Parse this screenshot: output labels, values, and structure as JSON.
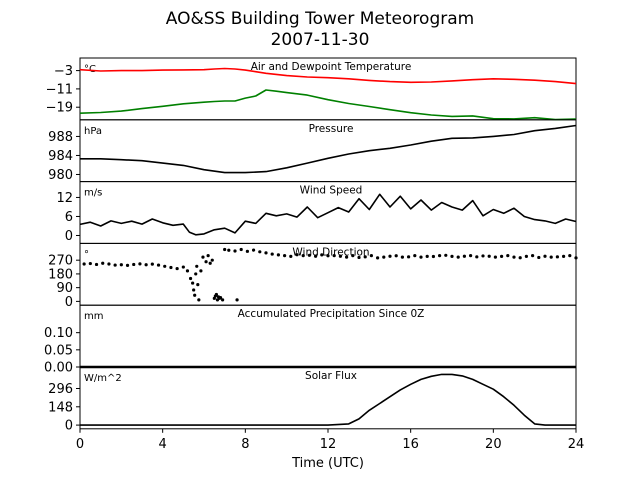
{
  "chart_data": {
    "type": "line",
    "title": "AO&SS Building Tower Meteorogram",
    "subtitle": "2007-11-30",
    "xlabel": "Time (UTC)",
    "xlim": [
      0,
      24
    ],
    "x_ticks": [
      0,
      4,
      8,
      12,
      16,
      20,
      24
    ],
    "x_tick_labels": [
      "0",
      "4",
      "8",
      "12",
      "16",
      "20",
      "24"
    ],
    "colors": {
      "temperature": "#ff0000",
      "dewpoint": "#008000",
      "default": "#000000"
    },
    "panels": [
      {
        "id": "temperature",
        "type": "line",
        "title": "Air and Dewpoint Temperature",
        "unit_label": "°C",
        "ylim": [
          -24.5,
          2.5
        ],
        "y_ticks": [
          -3,
          -11,
          -19
        ],
        "y_tick_labels": [
          "−3",
          "−11",
          "−19"
        ],
        "series": [
          {
            "key": "temperature",
            "color": "#ff0000",
            "x": [
              0,
              1,
              2,
              3,
              4,
              5,
              6,
              6.5,
              7,
              7.5,
              8,
              8.5,
              9,
              10,
              11,
              12,
              13,
              14,
              15,
              16,
              17,
              18,
              19,
              20,
              21,
              22,
              23,
              24
            ],
            "y": [
              -2.6,
              -3.2,
              -3.0,
              -3.0,
              -2.8,
              -2.7,
              -2.6,
              -2.3,
              -2.1,
              -2.3,
              -2.8,
              -3.5,
              -4.2,
              -5.2,
              -5.8,
              -6.1,
              -6.6,
              -7.3,
              -7.8,
              -8.1,
              -8.0,
              -7.5,
              -7.0,
              -6.6,
              -6.8,
              -7.2,
              -7.8,
              -8.7
            ]
          },
          {
            "key": "dewpoint",
            "color": "#008000",
            "x": [
              0,
              1,
              2,
              3,
              4,
              5,
              6,
              6.5,
              7,
              7.5,
              8,
              8.5,
              9,
              9.5,
              10,
              11,
              12,
              13,
              14,
              15,
              16,
              17,
              18,
              19,
              20,
              21,
              22,
              23,
              24
            ],
            "y": [
              -21.6,
              -21.3,
              -20.7,
              -19.6,
              -18.6,
              -17.5,
              -16.8,
              -16.5,
              -16.3,
              -16.3,
              -15.0,
              -14.1,
              -11.5,
              -12.0,
              -12.6,
              -13.7,
              -15.7,
              -17.4,
              -18.7,
              -20.1,
              -21.4,
              -22.4,
              -23.0,
              -22.8,
              -24.0,
              -24.1,
              -23.6,
              -24.4,
              -24.2
            ]
          }
        ]
      },
      {
        "id": "pressure",
        "type": "line",
        "title": "Pressure",
        "unit_label": "hPa",
        "ylim": [
          978.5,
          991.5
        ],
        "y_ticks": [
          980,
          984,
          988
        ],
        "y_tick_labels": [
          "980",
          "984",
          "988"
        ],
        "series": [
          {
            "key": "default",
            "color": "#000000",
            "x": [
              0,
              1,
              2,
              3,
              4,
              5,
              6,
              7,
              8,
              9,
              10,
              11,
              12,
              13,
              14,
              15,
              16,
              17,
              18,
              19,
              20,
              21,
              22,
              23,
              24
            ],
            "y": [
              983.3,
              983.3,
              983.1,
              982.9,
              982.4,
              981.9,
              981.0,
              980.4,
              980.4,
              980.6,
              981.4,
              982.4,
              983.4,
              984.3,
              985.0,
              985.5,
              986.2,
              987.0,
              987.6,
              987.7,
              988.0,
              988.4,
              989.2,
              989.7,
              990.3
            ]
          }
        ]
      },
      {
        "id": "wind-speed",
        "type": "line",
        "title": "Wind Speed",
        "unit_label": "m/s",
        "ylim": [
          -2.5,
          17
        ],
        "y_ticks": [
          0,
          6,
          12
        ],
        "y_tick_labels": [
          "0",
          "6",
          "12"
        ],
        "series": [
          {
            "key": "default",
            "color": "#000000",
            "x": [
              0,
              0.5,
              1,
              1.5,
              2,
              2.5,
              3,
              3.5,
              4,
              4.5,
              5,
              5.3,
              5.6,
              6,
              6.5,
              7,
              7.5,
              8,
              8.5,
              9,
              9.5,
              10,
              10.5,
              11,
              11.5,
              12,
              12.5,
              13,
              13.5,
              14,
              14.5,
              15,
              15.5,
              16,
              16.5,
              17,
              17.5,
              18,
              18.5,
              19,
              19.5,
              20,
              20.5,
              21,
              21.5,
              22,
              22.5,
              23,
              23.5,
              24
            ],
            "y": [
              3.5,
              4.2,
              3.0,
              4.6,
              3.8,
              4.5,
              3.6,
              5.2,
              4.0,
              3.2,
              3.6,
              1.0,
              0.2,
              0.5,
              1.8,
              2.3,
              0.8,
              4.5,
              3.8,
              7.0,
              6.2,
              6.8,
              5.8,
              9.0,
              5.6,
              7.2,
              8.8,
              7.4,
              11.6,
              8.2,
              13.0,
              9.0,
              12.4,
              8.4,
              11.2,
              8.0,
              10.4,
              9.0,
              8.0,
              11.0,
              6.2,
              8.2,
              7.0,
              8.6,
              6.0,
              5.0,
              4.6,
              3.8,
              5.2,
              4.4
            ]
          }
        ]
      },
      {
        "id": "wind-direction",
        "type": "scatter",
        "title": "Wind Direction",
        "unit_label": "°",
        "ylim": [
          -25,
          380
        ],
        "y_ticks": [
          0,
          90,
          180,
          270
        ],
        "y_tick_labels": [
          "0",
          "90",
          "180",
          "270"
        ],
        "series": [
          {
            "key": "default",
            "color": "#000000",
            "x": [
              0.2,
              0.5,
              0.8,
              1.1,
              1.4,
              1.7,
              2.0,
              2.3,
              2.6,
              2.9,
              3.2,
              3.5,
              3.8,
              4.1,
              4.4,
              4.7,
              5.0,
              5.2,
              5.35,
              5.45,
              5.5,
              5.55,
              5.6,
              5.65,
              5.7,
              5.75,
              5.85,
              5.95,
              6.1,
              6.2,
              6.3,
              6.4,
              6.5,
              6.55,
              6.6,
              6.65,
              6.7,
              6.75,
              6.8,
              6.9,
              7.0,
              7.2,
              7.5,
              7.8,
              8.1,
              8.4,
              8.7,
              9.0,
              9.3,
              9.6,
              9.9,
              10.2,
              10.5,
              10.8,
              11.1,
              11.4,
              11.7,
              12.0,
              12.3,
              12.6,
              12.9,
              13.2,
              13.5,
              13.8,
              14.1,
              14.4,
              14.7,
              15.0,
              15.3,
              15.6,
              15.9,
              16.2,
              16.5,
              16.8,
              17.1,
              17.4,
              17.7,
              18.0,
              18.3,
              18.6,
              18.9,
              19.2,
              19.5,
              19.8,
              20.1,
              20.4,
              20.7,
              21.0,
              21.3,
              21.6,
              21.9,
              22.2,
              22.5,
              22.8,
              23.1,
              23.4,
              23.7,
              24.0
            ],
            "y": [
              245,
              248,
              242,
              250,
              245,
              238,
              240,
              236,
              242,
              246,
              240,
              244,
              238,
              230,
              222,
              215,
              225,
              200,
              150,
              120,
              75,
              40,
              180,
              230,
              110,
              10,
              200,
              290,
              260,
              300,
              250,
              270,
              20,
              35,
              45,
              10,
              30,
              20,
              25,
              10,
              340,
              335,
              330,
              340,
              328,
              336,
              325,
              318,
              310,
              305,
              300,
              295,
              306,
              300,
              302,
              296,
              305,
              299,
              300,
              296,
              290,
              300,
              288,
              292,
              300,
              285,
              290,
              296,
              299,
              290,
              292,
              300,
              290,
              295,
              294,
              300,
              302,
              295,
              290,
              296,
              300,
              292,
              298,
              296,
              290,
              295,
              300,
              290,
              286,
              295,
              300,
              288,
              296,
              290,
              292,
              295,
              300,
              285
            ]
          },
          {
            "key": "default",
            "color": "#000000",
            "x": [
              7.6
            ],
            "y": [
              10
            ]
          }
        ]
      },
      {
        "id": "precipitation",
        "type": "line",
        "title": "Accumulated Precipitation Since 0Z",
        "unit_label": "mm",
        "ylim": [
          0,
          0.18
        ],
        "y_ticks": [
          0.0,
          0.05,
          0.1
        ],
        "y_tick_labels": [
          "0.00",
          "0.05",
          "0.10"
        ],
        "series": [
          {
            "key": "default",
            "color": "#000000",
            "x": [
              0,
              24
            ],
            "y": [
              0,
              0
            ]
          }
        ]
      },
      {
        "id": "solar-flux",
        "type": "line",
        "title": "Solar Flux",
        "unit_label": "W/m^2",
        "ylim": [
          -30,
          470
        ],
        "y_ticks": [
          0,
          148,
          296
        ],
        "y_tick_labels": [
          "0",
          "148",
          "296"
        ],
        "series": [
          {
            "key": "default",
            "color": "#000000",
            "x": [
              0,
              12,
              13,
              13.5,
              14,
              14.5,
              15,
              15.5,
              16,
              16.5,
              17,
              17.5,
              18,
              18.5,
              19,
              19.5,
              20,
              20.5,
              21,
              21.5,
              22,
              22.5,
              23,
              24
            ],
            "y": [
              0,
              0,
              10,
              50,
              120,
              175,
              230,
              285,
              330,
              370,
              395,
              410,
              410,
              398,
              370,
              330,
              290,
              230,
              160,
              80,
              10,
              0,
              0,
              0
            ]
          }
        ]
      }
    ]
  }
}
